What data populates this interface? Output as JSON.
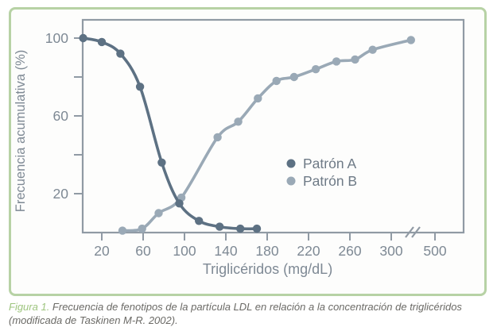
{
  "figure": {
    "caption_label": "Figura 1.",
    "caption_text": " Frecuencia de fenotipos de la partícula LDL en relación a la concentración de triglicéridos (modificada de Taskinen M-R. 2002)."
  },
  "colors": {
    "border_green": "#b7d2a5",
    "caption_green": "#9ec57f",
    "caption_text": "#6b6a66",
    "axis_gray": "#909aa4",
    "tick_label_gray": "#7e8994",
    "legend_text_gray": "#6e7a86",
    "patron_a": "#5d7183",
    "patron_b": "#9aa9b6"
  },
  "chart_data": {
    "type": "line",
    "title": "",
    "xlabel": "Triglicéridos (mg/dL)",
    "ylabel": "Frecuencia acumulativa (%)",
    "x_ticks": [
      20,
      60,
      100,
      140,
      180,
      220,
      260,
      300,
      500
    ],
    "x_axis_break_between": [
      300,
      500
    ],
    "y_ticks": [
      20,
      40,
      60,
      80,
      100
    ],
    "y_tick_labels_shown": [
      20,
      60,
      100
    ],
    "xlim_linear_to": 300,
    "ylim": [
      0,
      108
    ],
    "grid": false,
    "legend_position": "inside-lower-right",
    "legend": [
      "Patrón A",
      "Patrón B"
    ],
    "series": [
      {
        "name": "Patrón A",
        "color": "#5d7183",
        "points": [
          [
            2,
            100
          ],
          [
            20,
            98
          ],
          [
            38,
            92
          ],
          [
            57,
            75
          ],
          [
            78,
            36
          ],
          [
            95,
            15
          ],
          [
            114,
            6
          ],
          [
            134,
            3
          ],
          [
            154,
            2
          ],
          [
            170,
            2
          ]
        ]
      },
      {
        "name": "Patrón B",
        "color": "#9aa9b6",
        "points": [
          [
            40,
            1
          ],
          [
            59,
            2
          ],
          [
            75,
            10
          ],
          [
            97,
            18
          ],
          [
            132,
            49
          ],
          [
            152,
            57
          ],
          [
            171,
            69
          ],
          [
            189,
            78
          ],
          [
            206,
            80
          ],
          [
            227,
            84
          ],
          [
            247,
            88
          ],
          [
            265,
            89
          ],
          [
            282,
            94
          ],
          [
            390,
            99
          ]
        ]
      }
    ]
  }
}
